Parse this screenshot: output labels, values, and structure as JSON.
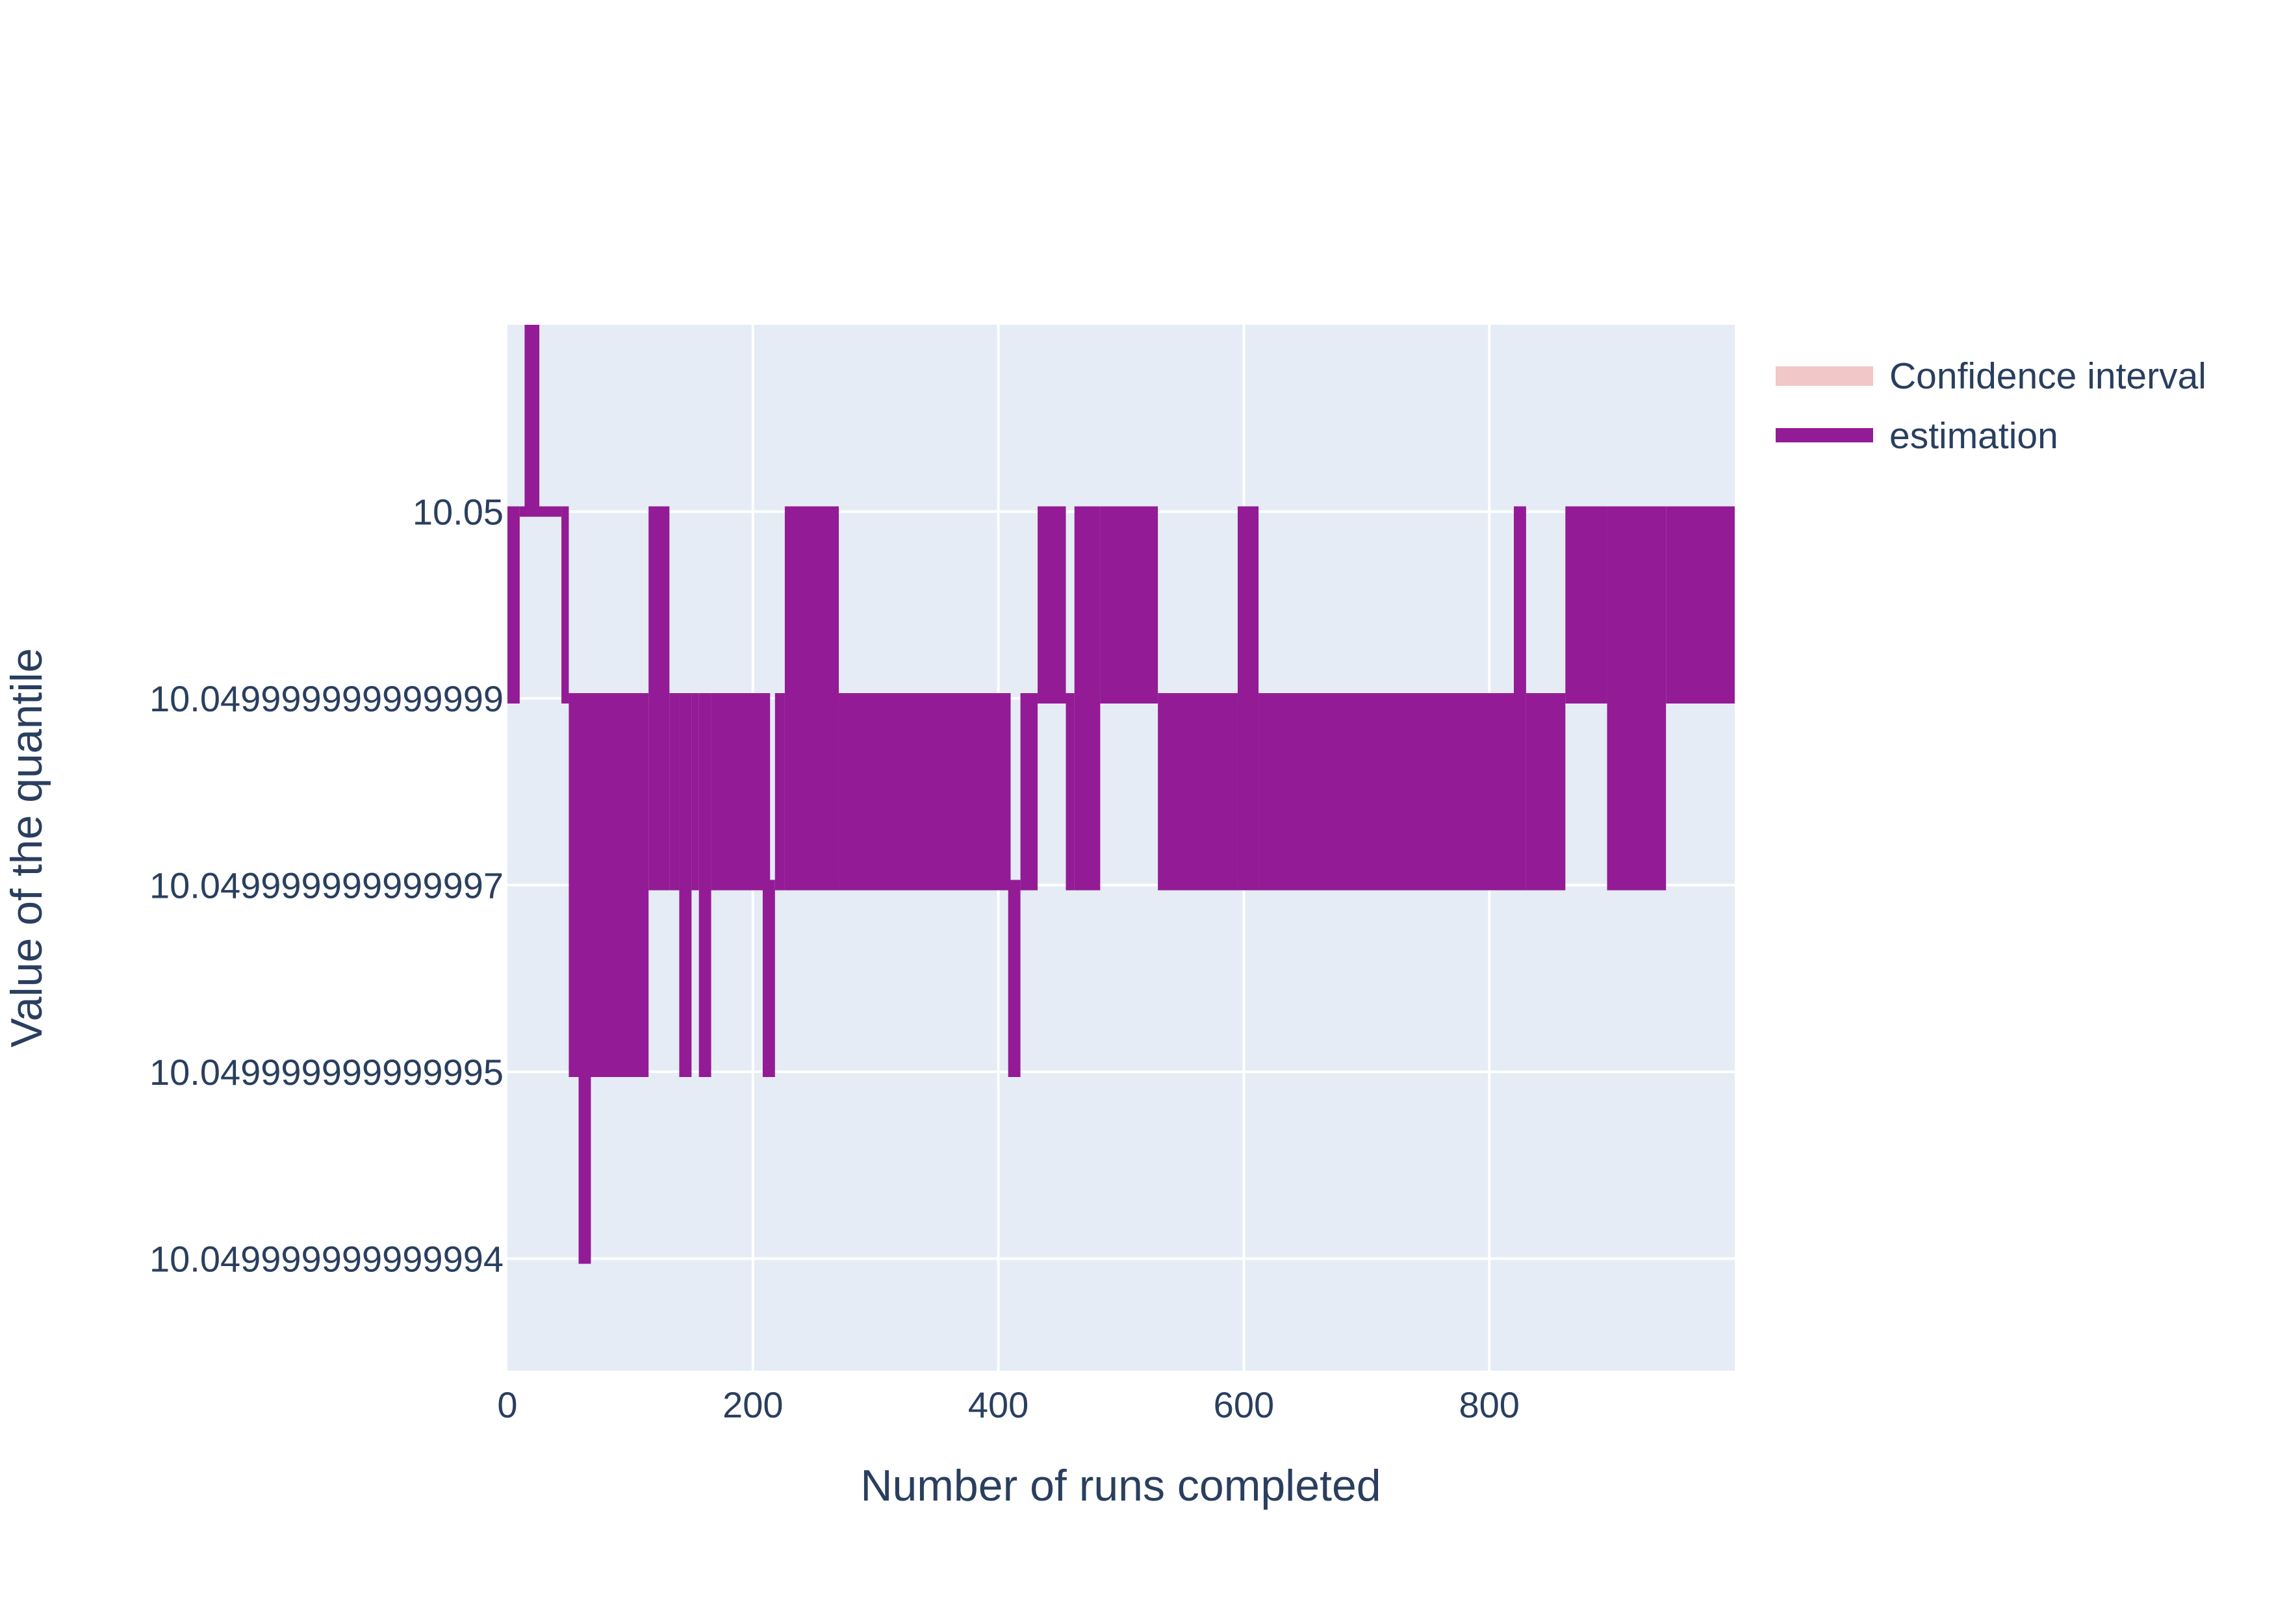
{
  "chart_data": {
    "type": "line",
    "title": "",
    "xlabel": "Number of runs completed",
    "ylabel": "Value of the quantile",
    "xlim": [
      0,
      1000
    ],
    "ylim_levels": [
      -0.6,
      5.0
    ],
    "x_ticks": [
      {
        "value": 0,
        "label": "0"
      },
      {
        "value": 200,
        "label": "200"
      },
      {
        "value": 400,
        "label": "400"
      },
      {
        "value": 600,
        "label": "600"
      },
      {
        "value": 800,
        "label": "800"
      }
    ],
    "y_ticks": [
      {
        "level": 0,
        "label": "10.049999999999994"
      },
      {
        "level": 1,
        "label": "10.049999999999995"
      },
      {
        "level": 2,
        "label": "10.049999999999997"
      },
      {
        "level": 3,
        "label": "10.049999999999999"
      },
      {
        "level": 4,
        "label": "10.05"
      }
    ],
    "grid": true,
    "legend_position": "top-right",
    "colors": {
      "estimation": "#931b95",
      "confidence": "#f2c7c7",
      "plot_bg": "#e5ecf6",
      "grid": "#ffffff",
      "text": "#2a3f5f"
    },
    "series": [
      {
        "name": "Confidence interval",
        "type": "band",
        "color": "#f2c7c7"
      },
      {
        "name": "estimation",
        "type": "line",
        "color": "#931b95"
      }
    ],
    "estimation_segments": [
      {
        "x": [
          0,
          10
        ],
        "lo": 3,
        "hi": 4
      },
      {
        "x": [
          14,
          26
        ],
        "lo": 4,
        "hi": 5
      },
      {
        "x": [
          10,
          44
        ],
        "lo": 4,
        "hi": 4
      },
      {
        "x": [
          44,
          50
        ],
        "lo": 3,
        "hi": 4
      },
      {
        "x": [
          50,
          115
        ],
        "lo": 1,
        "hi": 3
      },
      {
        "x": [
          58,
          68
        ],
        "lo": 0,
        "hi": 1
      },
      {
        "x": [
          115,
          132
        ],
        "lo": 2,
        "hi": 4
      },
      {
        "x": [
          132,
          140
        ],
        "lo": 2,
        "hi": 3
      },
      {
        "x": [
          140,
          150
        ],
        "lo": 1,
        "hi": 3
      },
      {
        "x": [
          150,
          156
        ],
        "lo": 2,
        "hi": 3
      },
      {
        "x": [
          156,
          166
        ],
        "lo": 1,
        "hi": 3
      },
      {
        "x": [
          166,
          214
        ],
        "lo": 2,
        "hi": 3
      },
      {
        "x": [
          208,
          218
        ],
        "lo": 1,
        "hi": 2
      },
      {
        "x": [
          218,
          226
        ],
        "lo": 2,
        "hi": 3
      },
      {
        "x": [
          226,
          270
        ],
        "lo": 2,
        "hi": 4
      },
      {
        "x": [
          270,
          410
        ],
        "lo": 2,
        "hi": 3
      },
      {
        "x": [
          408,
          418
        ],
        "lo": 1,
        "hi": 2
      },
      {
        "x": [
          418,
          432
        ],
        "lo": 2,
        "hi": 3
      },
      {
        "x": [
          432,
          455
        ],
        "lo": 3,
        "hi": 4
      },
      {
        "x": [
          455,
          462
        ],
        "lo": 2,
        "hi": 3
      },
      {
        "x": [
          462,
          483
        ],
        "lo": 2,
        "hi": 4
      },
      {
        "x": [
          483,
          530
        ],
        "lo": 3,
        "hi": 4
      },
      {
        "x": [
          530,
          595
        ],
        "lo": 2,
        "hi": 3
      },
      {
        "x": [
          595,
          612
        ],
        "lo": 2,
        "hi": 4
      },
      {
        "x": [
          612,
          820
        ],
        "lo": 2,
        "hi": 3
      },
      {
        "x": [
          820,
          830
        ],
        "lo": 2,
        "hi": 4
      },
      {
        "x": [
          830,
          862
        ],
        "lo": 2,
        "hi": 3
      },
      {
        "x": [
          862,
          896
        ],
        "lo": 3,
        "hi": 4
      },
      {
        "x": [
          896,
          944
        ],
        "lo": 2,
        "hi": 4
      },
      {
        "x": [
          944,
          1000
        ],
        "lo": 3,
        "hi": 4
      }
    ]
  }
}
